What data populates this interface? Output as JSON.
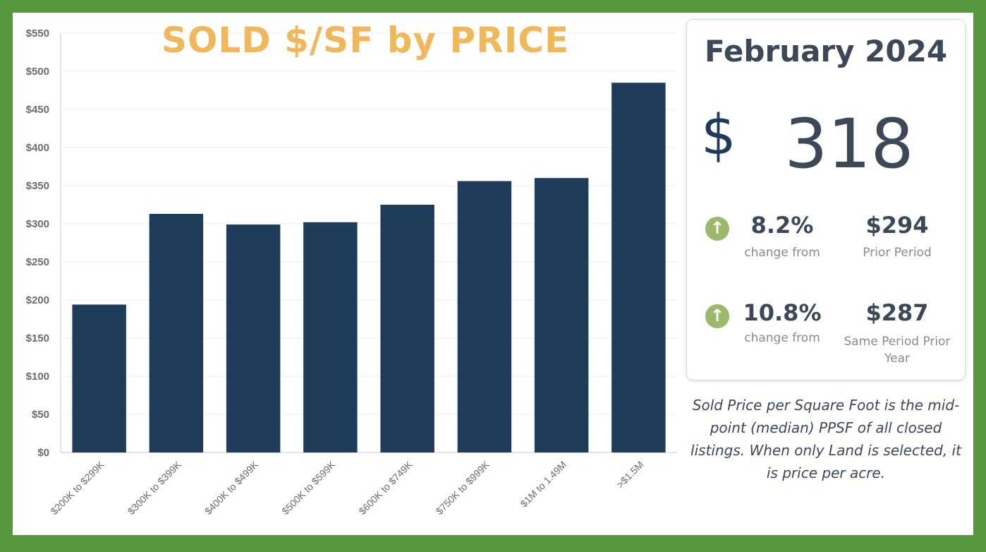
{
  "chart_data": {
    "type": "bar",
    "title": "SOLD $/SF by PRICE",
    "categories": [
      "$200K to $299K",
      "$300K to $399K",
      "$400K to $499K",
      "$500K to $599K",
      "$600K to $749K",
      "$750K to $999K",
      "$1M to 1.49M",
      ">$1.5M"
    ],
    "values": [
      194,
      313,
      299,
      302,
      325,
      356,
      360,
      485
    ],
    "ylim": [
      0,
      550
    ],
    "yticks": [
      0,
      50,
      100,
      150,
      200,
      250,
      300,
      350,
      400,
      450,
      500,
      550
    ],
    "ytick_labels": [
      "$0",
      "$50",
      "$100",
      "$150",
      "$200",
      "$250",
      "$300",
      "$350",
      "$400",
      "$450",
      "$500",
      "$550"
    ],
    "xlabel": "",
    "ylabel": "",
    "grid": true,
    "bar_color": "#1f3d5b"
  },
  "summary": {
    "period": "February 2024",
    "currency_symbol": "$",
    "value": "318",
    "stats": [
      {
        "change": "8.2%",
        "change_label": "change from",
        "amount": "$294",
        "amount_label": "Prior Period",
        "direction": "up",
        "icon": "arrow-up-icon"
      },
      {
        "change": "10.8%",
        "change_label": "change from",
        "amount": "$287",
        "amount_label": "Same Period Prior Year",
        "direction": "up",
        "icon": "arrow-up-icon"
      }
    ],
    "up_color": "#9cb86a"
  },
  "note": "Sold Price per Square Foot is the mid-point (median) PPSF of all closed listings. When only Land is selected, it is price per acre."
}
